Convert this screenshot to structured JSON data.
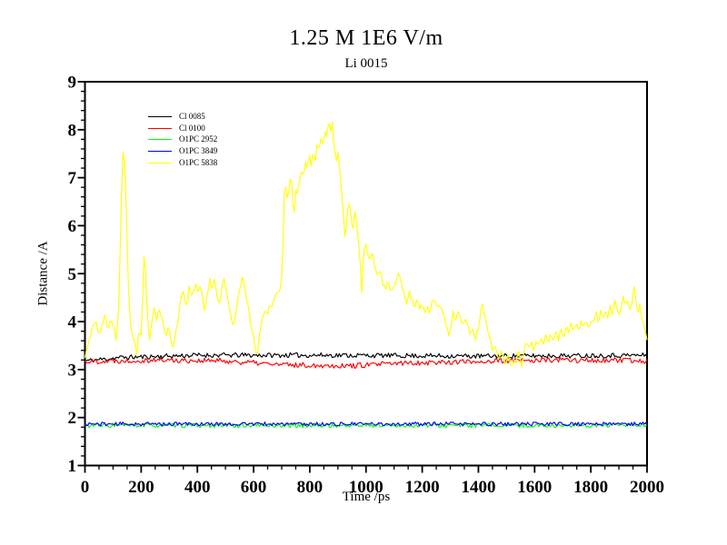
{
  "page": {
    "background": "#ffffff",
    "text_color": "#000000"
  },
  "chart_data": {
    "type": "line",
    "title": "1.25 M 1E6 V/m",
    "subtitle": "Li 0015",
    "xlabel": "Time /ps",
    "ylabel": "Distance /A",
    "xlim": [
      0,
      2000
    ],
    "ylim": [
      1,
      9
    ],
    "x_major_step": 200,
    "x_minor_step": 50,
    "y_major_step": 1,
    "y_minor_step": 0.2,
    "x_tick_labels": [
      "0",
      "200",
      "400",
      "600",
      "800",
      "1000",
      "1200",
      "1400",
      "1600",
      "1800",
      "2000"
    ],
    "y_tick_labels": [
      "1",
      "2",
      "3",
      "4",
      "5",
      "6",
      "7",
      "8",
      "9"
    ],
    "grid": false,
    "frame": true,
    "frame_color": "#000000",
    "legend_position": "top-left-inside",
    "sample_step_ps": 5,
    "series": [
      {
        "name": "Cl 0085",
        "color": "#000000",
        "seed": 11,
        "noise_amp": 0.05,
        "keypoints": [
          [
            0,
            3.18
          ],
          [
            120,
            3.25
          ],
          [
            400,
            3.3
          ],
          [
            900,
            3.3
          ],
          [
            1400,
            3.28
          ],
          [
            2000,
            3.3
          ]
        ]
      },
      {
        "name": "Cl 0100",
        "color": "#ff0000",
        "seed": 22,
        "noise_amp": 0.055,
        "keypoints": [
          [
            0,
            3.17
          ],
          [
            250,
            3.2
          ],
          [
            500,
            3.18
          ],
          [
            700,
            3.1
          ],
          [
            950,
            3.08
          ],
          [
            1150,
            3.14
          ],
          [
            1400,
            3.17
          ],
          [
            1700,
            3.2
          ],
          [
            2000,
            3.18
          ]
        ]
      },
      {
        "name": "O1PC 2952",
        "color": "#00ff00",
        "seed": 33,
        "noise_amp": 0.045,
        "keypoints": [
          [
            0,
            1.835
          ],
          [
            2000,
            1.835
          ]
        ]
      },
      {
        "name": "O1PC 3849",
        "color": "#0000ff",
        "seed": 44,
        "noise_amp": 0.04,
        "keypoints": [
          [
            0,
            1.865
          ],
          [
            2000,
            1.865
          ]
        ]
      },
      {
        "name": "O1PC 5838",
        "color": "#ffff00",
        "seed": 55,
        "noise_amp": 0.06,
        "keypoints": [
          [
            0,
            3.25
          ],
          [
            12,
            3.5
          ],
          [
            25,
            3.9
          ],
          [
            40,
            4.0
          ],
          [
            52,
            3.7
          ],
          [
            62,
            4.0
          ],
          [
            72,
            4.15
          ],
          [
            82,
            3.85
          ],
          [
            92,
            4.1
          ],
          [
            102,
            3.9
          ],
          [
            112,
            3.6
          ],
          [
            120,
            4.3
          ],
          [
            127,
            5.9
          ],
          [
            133,
            7.4
          ],
          [
            137,
            7.75
          ],
          [
            142,
            7.2
          ],
          [
            147,
            6.6
          ],
          [
            151,
            5.3
          ],
          [
            156,
            4.5
          ],
          [
            162,
            4.0
          ],
          [
            170,
            3.7
          ],
          [
            178,
            3.5
          ],
          [
            185,
            3.35
          ],
          [
            192,
            3.85
          ],
          [
            199,
            3.6
          ],
          [
            205,
            4.4
          ],
          [
            211,
            5.55
          ],
          [
            216,
            5.0
          ],
          [
            222,
            4.1
          ],
          [
            230,
            3.65
          ],
          [
            238,
            4.0
          ],
          [
            247,
            4.3
          ],
          [
            255,
            4.05
          ],
          [
            263,
            4.3
          ],
          [
            272,
            4.1
          ],
          [
            280,
            3.9
          ],
          [
            288,
            3.7
          ],
          [
            296,
            3.95
          ],
          [
            305,
            3.65
          ],
          [
            313,
            3.4
          ],
          [
            322,
            3.8
          ],
          [
            331,
            4.05
          ],
          [
            340,
            4.4
          ],
          [
            347,
            4.7
          ],
          [
            354,
            4.45
          ],
          [
            362,
            4.3
          ],
          [
            370,
            4.75
          ],
          [
            378,
            4.5
          ],
          [
            386,
            4.6
          ],
          [
            394,
            4.85
          ],
          [
            402,
            4.6
          ],
          [
            410,
            4.75
          ],
          [
            418,
            4.5
          ],
          [
            427,
            4.2
          ],
          [
            436,
            4.55
          ],
          [
            444,
            4.9
          ],
          [
            452,
            4.7
          ],
          [
            460,
            4.85
          ],
          [
            468,
            4.6
          ],
          [
            477,
            4.3
          ],
          [
            486,
            4.7
          ],
          [
            494,
            4.9
          ],
          [
            502,
            4.65
          ],
          [
            511,
            4.35
          ],
          [
            520,
            4.15
          ],
          [
            528,
            3.9
          ],
          [
            537,
            4.15
          ],
          [
            546,
            4.5
          ],
          [
            554,
            4.8
          ],
          [
            562,
            5.0
          ],
          [
            570,
            4.7
          ],
          [
            579,
            4.35
          ],
          [
            588,
            4.05
          ],
          [
            597,
            3.75
          ],
          [
            605,
            3.45
          ],
          [
            613,
            3.3
          ],
          [
            621,
            3.7
          ],
          [
            630,
            4.0
          ],
          [
            639,
            4.25
          ],
          [
            648,
            4.15
          ],
          [
            656,
            4.35
          ],
          [
            665,
            4.25
          ],
          [
            674,
            4.45
          ],
          [
            682,
            4.6
          ],
          [
            690,
            4.65
          ],
          [
            698,
            4.75
          ],
          [
            703,
            5.1
          ],
          [
            707,
            6.2
          ],
          [
            711,
            6.95
          ],
          [
            716,
            6.7
          ],
          [
            721,
            6.5
          ],
          [
            727,
            6.9
          ],
          [
            733,
            7.1
          ],
          [
            739,
            6.55
          ],
          [
            745,
            6.3
          ],
          [
            751,
            6.85
          ],
          [
            757,
            6.6
          ],
          [
            763,
            6.95
          ],
          [
            770,
            7.15
          ],
          [
            777,
            7.0
          ],
          [
            784,
            7.3
          ],
          [
            791,
            7.15
          ],
          [
            798,
            7.45
          ],
          [
            805,
            7.3
          ],
          [
            812,
            7.5
          ],
          [
            819,
            7.35
          ],
          [
            826,
            7.75
          ],
          [
            833,
            7.55
          ],
          [
            840,
            7.85
          ],
          [
            847,
            7.65
          ],
          [
            854,
            8.0
          ],
          [
            861,
            7.85
          ],
          [
            868,
            8.15
          ],
          [
            874,
            7.95
          ],
          [
            880,
            8.1
          ],
          [
            887,
            7.6
          ],
          [
            894,
            7.3
          ],
          [
            901,
            7.5
          ],
          [
            908,
            7.1
          ],
          [
            915,
            6.6
          ],
          [
            921,
            6.15
          ],
          [
            927,
            5.6
          ],
          [
            933,
            6.3
          ],
          [
            940,
            6.5
          ],
          [
            947,
            6.2
          ],
          [
            954,
            5.9
          ],
          [
            961,
            6.35
          ],
          [
            967,
            6.1
          ],
          [
            974,
            5.6
          ],
          [
            980,
            5.15
          ],
          [
            985,
            4.6
          ],
          [
            991,
            5.45
          ],
          [
            998,
            5.7
          ],
          [
            1006,
            5.45
          ],
          [
            1014,
            5.25
          ],
          [
            1022,
            5.55
          ],
          [
            1031,
            5.2
          ],
          [
            1040,
            4.95
          ],
          [
            1050,
            5.05
          ],
          [
            1060,
            4.8
          ],
          [
            1070,
            4.65
          ],
          [
            1080,
            4.85
          ],
          [
            1090,
            4.6
          ],
          [
            1100,
            4.75
          ],
          [
            1110,
            4.9
          ],
          [
            1119,
            5.0
          ],
          [
            1128,
            4.75
          ],
          [
            1137,
            4.55
          ],
          [
            1146,
            4.4
          ],
          [
            1155,
            4.65
          ],
          [
            1163,
            4.45
          ],
          [
            1172,
            4.3
          ],
          [
            1181,
            4.45
          ],
          [
            1190,
            4.25
          ],
          [
            1199,
            4.35
          ],
          [
            1208,
            4.2
          ],
          [
            1217,
            4.3
          ],
          [
            1226,
            4.2
          ],
          [
            1235,
            4.4
          ],
          [
            1244,
            4.45
          ],
          [
            1253,
            4.25
          ],
          [
            1262,
            4.35
          ],
          [
            1271,
            4.2
          ],
          [
            1279,
            4.05
          ],
          [
            1287,
            3.9
          ],
          [
            1295,
            3.75
          ],
          [
            1303,
            3.95
          ],
          [
            1311,
            4.2
          ],
          [
            1319,
            3.95
          ],
          [
            1327,
            4.25
          ],
          [
            1335,
            4.1
          ],
          [
            1344,
            3.95
          ],
          [
            1353,
            4.05
          ],
          [
            1361,
            3.9
          ],
          [
            1370,
            3.75
          ],
          [
            1380,
            3.85
          ],
          [
            1390,
            3.65
          ],
          [
            1400,
            3.9
          ],
          [
            1408,
            4.2
          ],
          [
            1415,
            4.4
          ],
          [
            1423,
            4.1
          ],
          [
            1432,
            3.85
          ],
          [
            1441,
            3.6
          ],
          [
            1450,
            3.4
          ],
          [
            1458,
            3.55
          ],
          [
            1466,
            3.35
          ],
          [
            1473,
            3.2
          ],
          [
            1481,
            3.45
          ],
          [
            1489,
            3.25
          ],
          [
            1496,
            3.05
          ],
          [
            1503,
            3.35
          ],
          [
            1511,
            3.2
          ],
          [
            1518,
            2.95
          ],
          [
            1526,
            3.3
          ],
          [
            1533,
            3.1
          ],
          [
            1541,
            3.45
          ],
          [
            1549,
            3.25
          ],
          [
            1556,
            3.05
          ],
          [
            1563,
            3.4
          ],
          [
            1571,
            3.55
          ],
          [
            1579,
            3.4
          ],
          [
            1587,
            3.6
          ],
          [
            1595,
            3.45
          ],
          [
            1604,
            3.6
          ],
          [
            1613,
            3.5
          ],
          [
            1622,
            3.65
          ],
          [
            1631,
            3.5
          ],
          [
            1640,
            3.7
          ],
          [
            1649,
            3.55
          ],
          [
            1658,
            3.75
          ],
          [
            1667,
            3.6
          ],
          [
            1676,
            3.8
          ],
          [
            1685,
            3.65
          ],
          [
            1694,
            3.8
          ],
          [
            1703,
            3.7
          ],
          [
            1712,
            3.9
          ],
          [
            1721,
            3.75
          ],
          [
            1730,
            3.95
          ],
          [
            1739,
            3.8
          ],
          [
            1748,
            4.0
          ],
          [
            1757,
            3.85
          ],
          [
            1766,
            4.0
          ],
          [
            1775,
            3.9
          ],
          [
            1784,
            4.05
          ],
          [
            1793,
            3.9
          ],
          [
            1802,
            4.1
          ],
          [
            1811,
            3.95
          ],
          [
            1820,
            4.15
          ],
          [
            1828,
            4.0
          ],
          [
            1836,
            4.2
          ],
          [
            1845,
            4.05
          ],
          [
            1853,
            4.25
          ],
          [
            1861,
            4.1
          ],
          [
            1869,
            4.3
          ],
          [
            1877,
            4.15
          ],
          [
            1885,
            4.45
          ],
          [
            1893,
            4.25
          ],
          [
            1901,
            4.1
          ],
          [
            1909,
            4.35
          ],
          [
            1916,
            4.55
          ],
          [
            1923,
            4.35
          ],
          [
            1931,
            4.5
          ],
          [
            1938,
            4.25
          ],
          [
            1946,
            4.3
          ],
          [
            1953,
            4.8
          ],
          [
            1960,
            4.4
          ],
          [
            1968,
            4.2
          ],
          [
            1976,
            4.35
          ],
          [
            1984,
            4.0
          ],
          [
            1992,
            3.8
          ],
          [
            2000,
            3.65
          ]
        ]
      }
    ]
  }
}
